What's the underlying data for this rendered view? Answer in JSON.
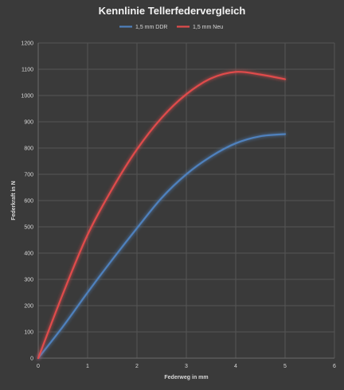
{
  "chart_data": {
    "type": "line",
    "title": "Kennlinie Tellerfedervergleich",
    "xlabel": "Federweg in mm",
    "ylabel": "Federkraft in N",
    "xlim": [
      0,
      6
    ],
    "ylim": [
      0,
      1200
    ],
    "x_ticks": [
      "0",
      "1",
      "2",
      "3",
      "4",
      "5",
      "6"
    ],
    "y_ticks": [
      "0",
      "100",
      "200",
      "300",
      "400",
      "500",
      "600",
      "700",
      "800",
      "900",
      "1000",
      "1100",
      "1200"
    ],
    "grid": true,
    "legend_position": "top",
    "series": [
      {
        "name": "1,5 mm DDR",
        "color": "#4f81bd",
        "x": [
          0,
          0.5,
          1,
          1.5,
          2,
          2.5,
          3,
          3.5,
          4,
          4.5,
          5
        ],
        "y": [
          0,
          120,
          250,
          375,
          495,
          610,
          700,
          768,
          818,
          845,
          853
        ]
      },
      {
        "name": "1,5 mm Neu",
        "color": "#e04c4c",
        "x": [
          0,
          0.5,
          1,
          1.5,
          2,
          2.5,
          3,
          3.5,
          4,
          4.5,
          5
        ],
        "y": [
          0,
          245,
          470,
          645,
          795,
          915,
          1005,
          1065,
          1090,
          1080,
          1062
        ]
      }
    ]
  }
}
